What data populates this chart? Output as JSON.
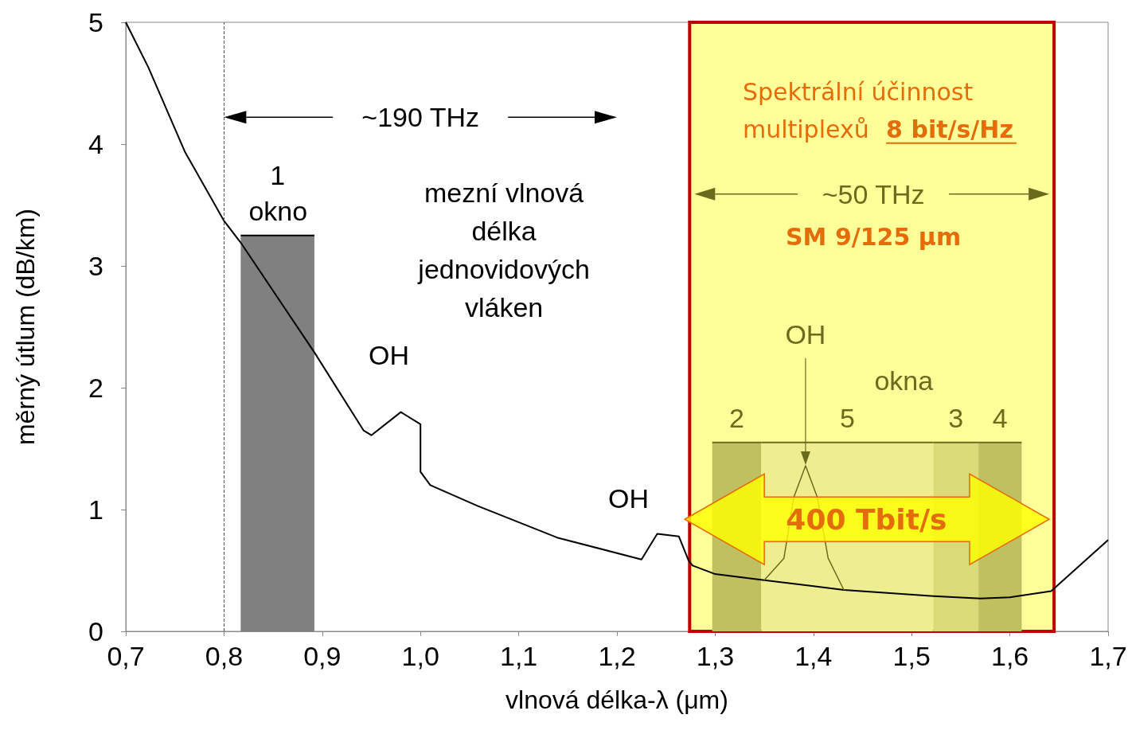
{
  "chart_data": {
    "type": "line",
    "xlabel": "vlnová délka-λ (μm)",
    "ylabel": "měrný útlum (dB/km)",
    "xlim": [
      0.7,
      1.7
    ],
    "xticks": [
      {
        "value": 0.7,
        "label": "0,7"
      },
      {
        "value": 0.8,
        "label": "0,8"
      },
      {
        "value": 0.9,
        "label": "0,9"
      },
      {
        "value": 1.0,
        "label": "1,0"
      },
      {
        "value": 1.1,
        "label": "1,1"
      },
      {
        "value": 1.2,
        "label": "1,2"
      },
      {
        "value": 1.3,
        "label": "1,3"
      },
      {
        "value": 1.4,
        "label": "1,4"
      },
      {
        "value": 1.5,
        "label": "1,5"
      },
      {
        "value": 1.6,
        "label": "1,6"
      },
      {
        "value": 1.7,
        "label": "1,7"
      }
    ],
    "ylim": [
      0,
      5
    ],
    "yticks": [
      0,
      1,
      2,
      3,
      4,
      5
    ],
    "marker": "none",
    "line_style": "solid",
    "bands": [
      {
        "axis": "x",
        "from": 1.274,
        "to": 1.645,
        "color": "#ffff99"
      }
    ],
    "ref_lines": [
      {
        "axis": "x",
        "value": 0.8,
        "line_style": "dashed",
        "color": "#555555"
      }
    ],
    "series": [
      {
        "name": "1",
        "type": "area",
        "color": "#808080",
        "x": [
          0.817,
          0.892
        ],
        "values": [
          3.25,
          3.25
        ]
      },
      {
        "name": "2",
        "type": "area",
        "color": "#c0c060",
        "x": [
          1.297,
          1.347
        ],
        "values": [
          1.55,
          1.55
        ]
      },
      {
        "name": "5",
        "type": "area",
        "color": "#eeee90",
        "x": [
          1.347,
          1.522
        ],
        "values": [
          1.55,
          1.55
        ]
      },
      {
        "name": "3",
        "type": "area",
        "color": "#dada78",
        "x": [
          1.522,
          1.568
        ],
        "values": [
          1.55,
          1.55
        ]
      },
      {
        "name": "4",
        "type": "area",
        "color": "#c0c060",
        "x": [
          1.568,
          1.612
        ],
        "values": [
          1.55,
          1.55
        ]
      },
      {
        "color": "#000000",
        "x": [
          0.7,
          0.723,
          0.76,
          0.8,
          0.818,
          0.892,
          0.942,
          0.95,
          0.98,
          1.0,
          1.0,
          1.01,
          1.058,
          1.139,
          1.225,
          1.241,
          1.263,
          1.273,
          1.277,
          1.3,
          1.35,
          1.431,
          1.522,
          1.57,
          1.6,
          1.642,
          1.7
        ],
        "values": [
          5,
          4.63,
          3.94,
          3.37,
          3.18,
          2.29,
          1.65,
          1.61,
          1.8,
          1.7,
          1.31,
          1.2,
          1.03,
          0.77,
          0.59,
          0.8,
          0.78,
          0.58,
          0.54,
          0.47,
          0.42,
          0.34,
          0.29,
          0.27,
          0.28,
          0.33,
          0.75
        ]
      },
      {
        "type": "line",
        "color": "#6b6b1e",
        "x": [
          1.35,
          1.37,
          1.38,
          1.392,
          1.404,
          1.415,
          1.431
        ],
        "values": [
          0.42,
          0.6,
          1.1,
          1.36,
          1.1,
          0.6,
          0.34
        ]
      }
    ],
    "annotations": [
      "~190 THz",
      "okno",
      "mezní vlnová délka jednovidových vláken",
      {
        "text": "OH",
        "x": 0.98,
        "y": 1.8
      },
      {
        "text": "OH",
        "x": 1.241,
        "y": 0.8
      },
      "OH",
      "Spektrální účinnost multiplexů",
      "8 bit/s/Hz",
      "~50 THz",
      "SM 9/125 μm",
      "okna",
      "400 Tbit/s"
    ]
  }
}
